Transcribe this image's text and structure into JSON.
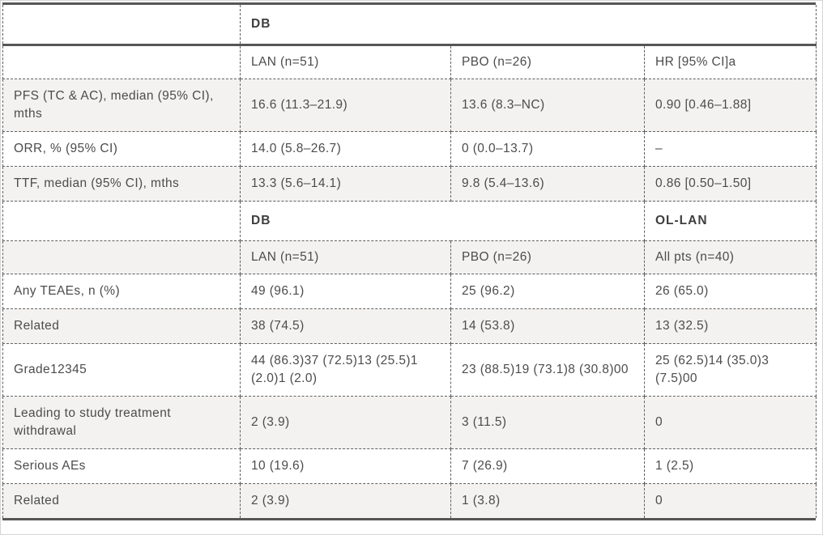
{
  "title": "Clinical efficacy and safety results table",
  "colors": {
    "border": "#565656",
    "dashed_border": "#606060",
    "text": "#4c4c4c",
    "header_text": "#3e3e3e",
    "shaded_row_bg": "#f3f2f1",
    "row_bg": "#ffffff"
  },
  "chart_data": {
    "type": "table",
    "column_count": 4,
    "rows": [
      {
        "kind": "group_header",
        "cells": [
          {
            "text": "",
            "colspan": 1
          },
          {
            "text": "DB",
            "colspan": 3
          }
        ]
      },
      {
        "kind": "column_header",
        "cells": [
          "",
          "LAN (n=51)",
          "PBO (n=26)",
          "HR [95% CI]a"
        ]
      },
      {
        "kind": "data",
        "cells": [
          "PFS (TC & AC), median (95% CI), mths",
          "16.6 (11.3–21.9)",
          "13.6 (8.3–NC)",
          "0.90 [0.46–1.88]"
        ]
      },
      {
        "kind": "data",
        "cells": [
          "ORR, % (95% CI)",
          "14.0 (5.8–26.7)",
          "0 (0.0–13.7)",
          "–"
        ]
      },
      {
        "kind": "data",
        "cells": [
          "TTF, median (95% CI), mths",
          "13.3 (5.6–14.1)",
          "9.8 (5.4–13.6)",
          "0.86 [0.50–1.50]"
        ]
      },
      {
        "kind": "group_header",
        "cells": [
          {
            "text": "",
            "colspan": 1
          },
          {
            "text": "DB",
            "colspan": 2
          },
          {
            "text": "OL-LAN",
            "colspan": 1
          }
        ]
      },
      {
        "kind": "column_header",
        "cells": [
          "",
          "LAN (n=51)",
          "PBO (n=26)",
          "All pts (n=40)"
        ]
      },
      {
        "kind": "data",
        "cells": [
          "Any TEAEs, n (%)",
          "49 (96.1)",
          "25 (96.2)",
          "26 (65.0)"
        ]
      },
      {
        "kind": "data",
        "cells": [
          "Related",
          "38 (74.5)",
          "14 (53.8)",
          "13 (32.5)"
        ]
      },
      {
        "kind": "data",
        "cells": [
          "Grade12345",
          "44 (86.3)37 (72.5)13 (25.5)1 (2.0)1 (2.0)",
          "23 (88.5)19 (73.1)8 (30.8)00",
          "25 (62.5)14 (35.0)3 (7.5)00"
        ]
      },
      {
        "kind": "data",
        "cells": [
          "Leading to study treatment withdrawal",
          "2 (3.9)",
          "3 (11.5)",
          "0"
        ]
      },
      {
        "kind": "data",
        "cells": [
          "Serious AEs",
          "10 (19.6)",
          "7 (26.9)",
          "1 (2.5)"
        ]
      },
      {
        "kind": "data",
        "cells": [
          "Related",
          "2 (3.9)",
          "1 (3.8)",
          "0"
        ]
      }
    ]
  }
}
